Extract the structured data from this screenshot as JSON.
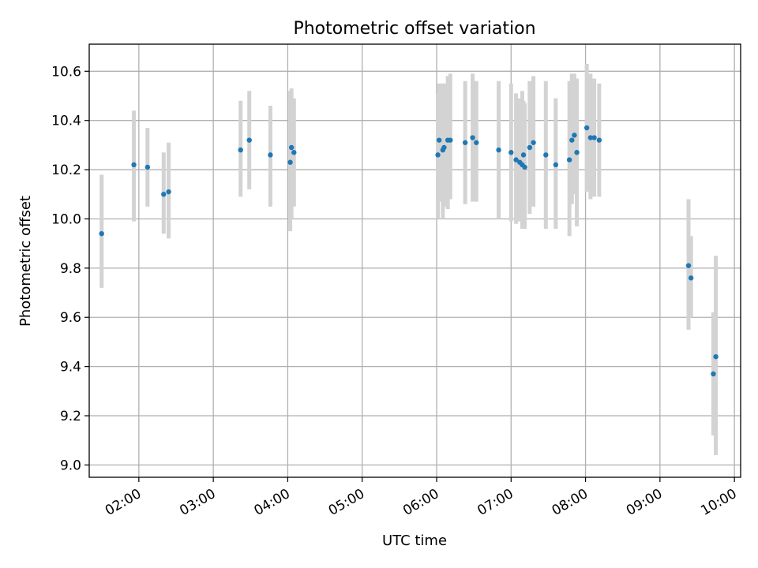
{
  "chart_data": {
    "type": "scatter",
    "title": "Photometric offset variation",
    "xlabel": "UTC time",
    "ylabel": "Photometric offset",
    "xlim": [
      "01:20",
      "10:05"
    ],
    "ylim": [
      8.95,
      10.71
    ],
    "x_ticks": [
      "02:00",
      "03:00",
      "04:00",
      "05:00",
      "06:00",
      "07:00",
      "08:00",
      "09:00",
      "10:00"
    ],
    "y_ticks": [
      "9.0",
      "9.2",
      "9.4",
      "9.6",
      "9.8",
      "10.0",
      "10.2",
      "10.4",
      "10.6"
    ],
    "grid": true,
    "colors": {
      "points": "#1f77b4",
      "error_bars": "#d3d3d3",
      "grid": "#b0b0b0"
    },
    "series": [
      {
        "x": [
          "01:30",
          "01:56",
          "02:07",
          "02:20",
          "02:24",
          "03:22",
          "03:29",
          "03:46",
          "04:02",
          "04:03",
          "04:05",
          "06:01",
          "06:02",
          "06:05",
          "06:06",
          "06:09",
          "06:11",
          "06:23",
          "06:29",
          "06:32",
          "06:50",
          "07:00",
          "07:04",
          "07:07",
          "07:09",
          "07:10",
          "07:11",
          "07:15",
          "07:18",
          "07:28",
          "07:36",
          "07:47",
          "07:49",
          "07:51",
          "07:53",
          "08:01",
          "08:04",
          "08:07",
          "08:11",
          "09:23",
          "09:25",
          "09:43",
          "09:45"
        ],
        "y": [
          9.94,
          10.22,
          10.21,
          10.1,
          10.11,
          10.28,
          10.32,
          10.26,
          10.23,
          10.29,
          10.27,
          10.26,
          10.32,
          10.28,
          10.29,
          10.32,
          10.32,
          10.31,
          10.33,
          10.31,
          10.28,
          10.27,
          10.24,
          10.23,
          10.22,
          10.26,
          10.21,
          10.29,
          10.31,
          10.26,
          10.22,
          10.24,
          10.32,
          10.34,
          10.27,
          10.37,
          10.33,
          10.33,
          10.32,
          9.81,
          9.76,
          9.37,
          9.44
        ],
        "err_low": [
          9.72,
          9.99,
          10.05,
          9.94,
          9.92,
          10.09,
          10.12,
          10.05,
          9.95,
          10.0,
          10.05,
          10.0,
          10.07,
          10.0,
          10.05,
          10.04,
          10.08,
          10.06,
          10.07,
          10.07,
          10.0,
          9.99,
          9.98,
          9.99,
          9.96,
          9.97,
          9.96,
          10.02,
          10.05,
          9.96,
          9.96,
          9.93,
          10.06,
          10.1,
          9.97,
          10.11,
          10.08,
          10.09,
          10.09,
          9.55,
          9.6,
          9.12,
          9.04
        ],
        "err_high": [
          10.18,
          10.44,
          10.37,
          10.27,
          10.31,
          10.48,
          10.52,
          10.46,
          10.52,
          10.53,
          10.49,
          10.51,
          10.55,
          10.55,
          10.55,
          10.58,
          10.59,
          10.56,
          10.59,
          10.56,
          10.56,
          10.55,
          10.51,
          10.49,
          10.52,
          10.48,
          10.47,
          10.56,
          10.58,
          10.56,
          10.49,
          10.56,
          10.59,
          10.59,
          10.57,
          10.63,
          10.59,
          10.57,
          10.55,
          10.08,
          9.93,
          9.62,
          9.85
        ]
      }
    ]
  }
}
